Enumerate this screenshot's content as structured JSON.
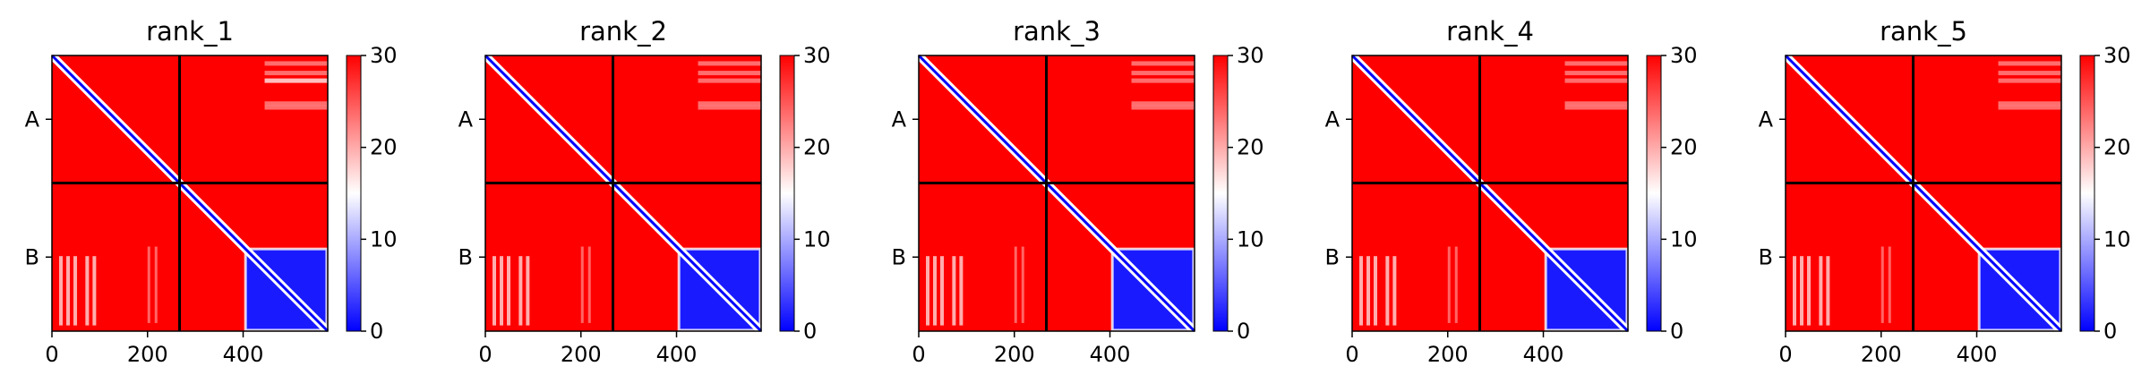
{
  "chart_data": [
    {
      "type": "heatmap",
      "title": "rank_1",
      "xticks": [
        0,
        200,
        400
      ],
      "xlim": [
        0,
        577
      ],
      "ylabels": [
        "A",
        "B"
      ],
      "chain_boundary": 267,
      "colorbar": {
        "ticks": [
          0,
          10,
          20,
          30
        ],
        "range": [
          0,
          30
        ],
        "colormap": [
          "#0000ff",
          "#ffffff",
          "#ff0000"
        ]
      }
    },
    {
      "type": "heatmap",
      "title": "rank_2",
      "xticks": [
        0,
        200,
        400
      ],
      "xlim": [
        0,
        577
      ],
      "ylabels": [
        "A",
        "B"
      ],
      "chain_boundary": 267,
      "colorbar": {
        "ticks": [
          0,
          10,
          20,
          30
        ],
        "range": [
          0,
          30
        ],
        "colormap": [
          "#0000ff",
          "#ffffff",
          "#ff0000"
        ]
      }
    },
    {
      "type": "heatmap",
      "title": "rank_3",
      "xticks": [
        0,
        200,
        400
      ],
      "xlim": [
        0,
        577
      ],
      "ylabels": [
        "A",
        "B"
      ],
      "chain_boundary": 267,
      "colorbar": {
        "ticks": [
          0,
          10,
          20,
          30
        ],
        "range": [
          0,
          30
        ],
        "colormap": [
          "#0000ff",
          "#ffffff",
          "#ff0000"
        ]
      }
    },
    {
      "type": "heatmap",
      "title": "rank_4",
      "xticks": [
        0,
        200,
        400
      ],
      "xlim": [
        0,
        577
      ],
      "ylabels": [
        "A",
        "B"
      ],
      "chain_boundary": 267,
      "colorbar": {
        "ticks": [
          0,
          10,
          20,
          30
        ],
        "range": [
          0,
          30
        ],
        "colormap": [
          "#0000ff",
          "#ffffff",
          "#ff0000"
        ]
      }
    },
    {
      "type": "heatmap",
      "title": "rank_5",
      "xticks": [
        0,
        200,
        400
      ],
      "xlim": [
        0,
        577
      ],
      "ylabels": [
        "A",
        "B"
      ],
      "chain_boundary": 267,
      "colorbar": {
        "ticks": [
          0,
          10,
          20,
          30
        ],
        "range": [
          0,
          30
        ],
        "colormap": [
          "#0000ff",
          "#ffffff",
          "#ff0000"
        ]
      }
    }
  ]
}
